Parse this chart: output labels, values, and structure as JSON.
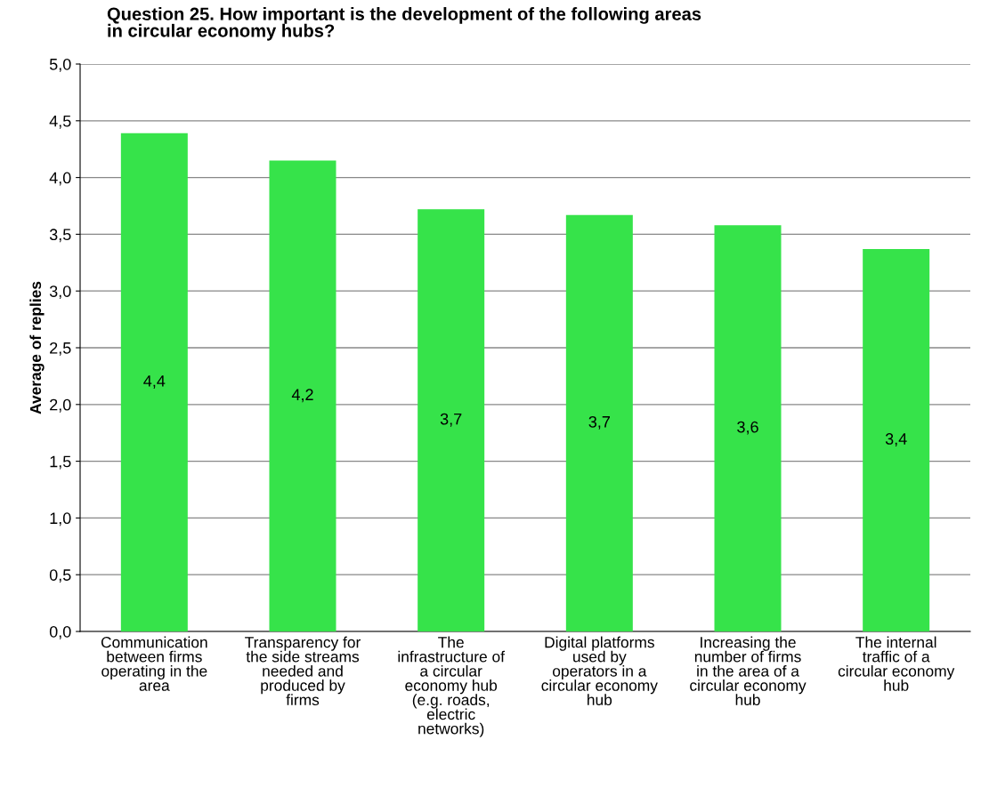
{
  "chart_data": {
    "type": "bar",
    "title": "Question 25. How important is the development of the following areas\nin circular economy hubs?",
    "ylabel": "Average of replies",
    "categories": [
      "Communication\nbetween firms\noperating in the\narea",
      "Transparency for\nthe side streams\nneeded and\nproduced by\nfirms",
      "The\ninfrastructure of\na circular\neconomy hub\n(e.g. roads,\nelectric\nnetworks)",
      "Digital platforms\nused by\noperators in a\ncircular economy\nhub",
      "Increasing the\nnumber of firms\nin the area of a\ncircular economy\nhub",
      "The internal\ntraffic of a\ncircular economy\nhub"
    ],
    "values": [
      4.39,
      4.15,
      3.72,
      3.67,
      3.58,
      3.37
    ],
    "value_labels": [
      "4,4",
      "4,2",
      "3,7",
      "3,7",
      "3,6",
      "3,4"
    ],
    "color": "#36e34a",
    "ylim": [
      0,
      5
    ],
    "yticks": [
      {
        "value": 0,
        "label": "0,0"
      },
      {
        "value": 0.5,
        "label": "0,5"
      },
      {
        "value": 1,
        "label": "1,0"
      },
      {
        "value": 1.5,
        "label": "1,5"
      },
      {
        "value": 2,
        "label": "2,0"
      },
      {
        "value": 2.5,
        "label": "2,5"
      },
      {
        "value": 3,
        "label": "3,0"
      },
      {
        "value": 3.5,
        "label": "3,5"
      },
      {
        "value": 4,
        "label": "4,0"
      },
      {
        "value": 4.5,
        "label": "4,5"
      },
      {
        "value": 5,
        "label": "5,0"
      }
    ],
    "grid": "y"
  }
}
